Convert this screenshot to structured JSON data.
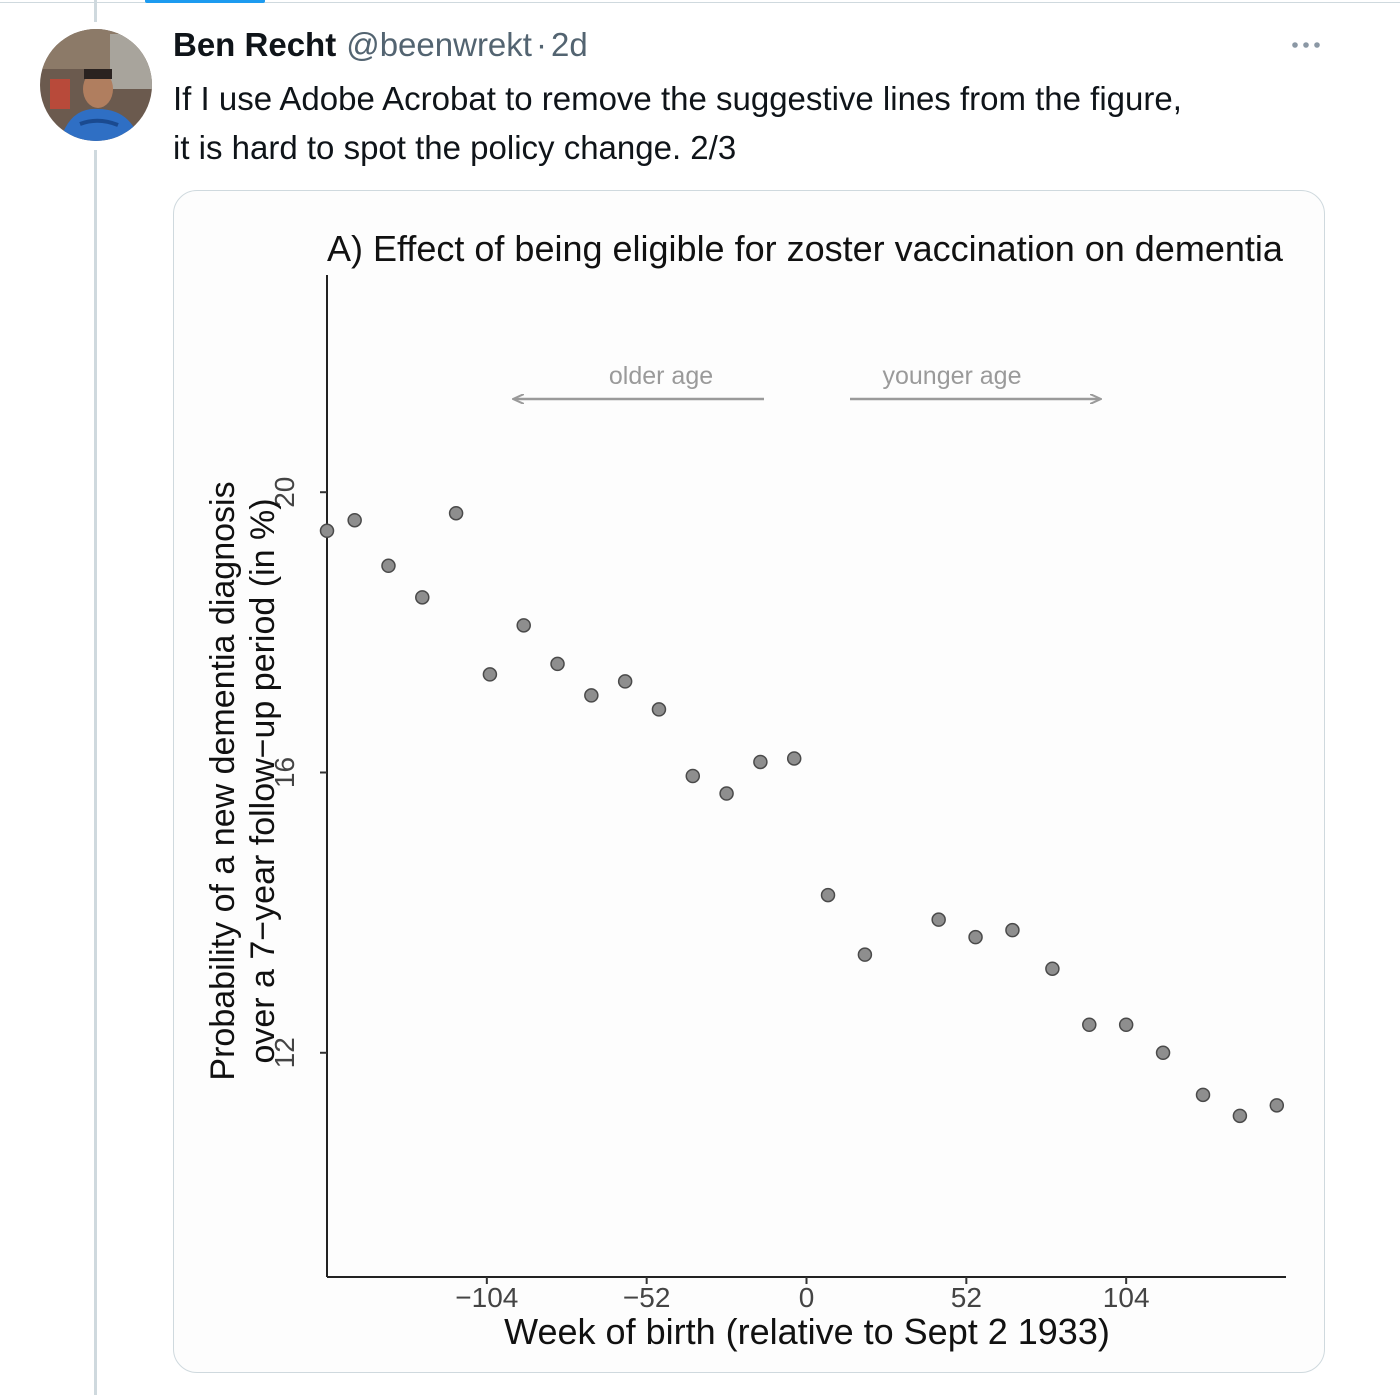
{
  "tweet": {
    "author_name": "Ben Recht",
    "handle": "@beenwrekt",
    "separator": "·",
    "timestamp": "2d",
    "text": "If I use Adobe Acrobat to remove the suggestive lines from the figure,\nit is hard to spot the policy change. 2/3",
    "more_icon": "ellipsis-icon"
  },
  "chart_data": {
    "type": "scatter",
    "title": "A) Effect of being eligible for zoster vaccination on dementia",
    "xlabel": "Week of birth (relative to Sept 2 1933)",
    "ylabel_lines": [
      "Probability of a new dementia diagnosis",
      "over a 7−year follow−up period (in %)"
    ],
    "x_ticks": [
      -104,
      -52,
      0,
      52,
      104
    ],
    "x_tick_labels": [
      "−104",
      "−52",
      "0",
      "52",
      "104"
    ],
    "y_ticks": [
      12,
      16,
      20
    ],
    "xlim": [
      -156,
      156
    ],
    "ylim": [
      8.8,
      23.1
    ],
    "annotations": [
      {
        "text": "older age",
        "direction": "left"
      },
      {
        "text": "younger age",
        "direction": "right"
      }
    ],
    "points": [
      {
        "x": -156,
        "y": 19.45
      },
      {
        "x": -147,
        "y": 19.6
      },
      {
        "x": -136,
        "y": 18.95
      },
      {
        "x": -125,
        "y": 18.5
      },
      {
        "x": -114,
        "y": 19.7
      },
      {
        "x": -103,
        "y": 17.4
      },
      {
        "x": -92,
        "y": 18.1
      },
      {
        "x": -81,
        "y": 17.55
      },
      {
        "x": -70,
        "y": 17.1
      },
      {
        "x": -59,
        "y": 17.3
      },
      {
        "x": -48,
        "y": 16.9
      },
      {
        "x": -37,
        "y": 15.95
      },
      {
        "x": -26,
        "y": 15.7
      },
      {
        "x": -15,
        "y": 16.15
      },
      {
        "x": -4,
        "y": 16.2
      },
      {
        "x": 7,
        "y": 14.25
      },
      {
        "x": 19,
        "y": 13.4
      },
      {
        "x": 43,
        "y": 13.9
      },
      {
        "x": 55,
        "y": 13.65
      },
      {
        "x": 67,
        "y": 13.75
      },
      {
        "x": 80,
        "y": 13.2
      },
      {
        "x": 92,
        "y": 12.4
      },
      {
        "x": 104,
        "y": 12.4
      },
      {
        "x": 116,
        "y": 12.0
      },
      {
        "x": 129,
        "y": 11.4
      },
      {
        "x": 141,
        "y": 11.1
      },
      {
        "x": 153,
        "y": 11.25
      }
    ]
  }
}
